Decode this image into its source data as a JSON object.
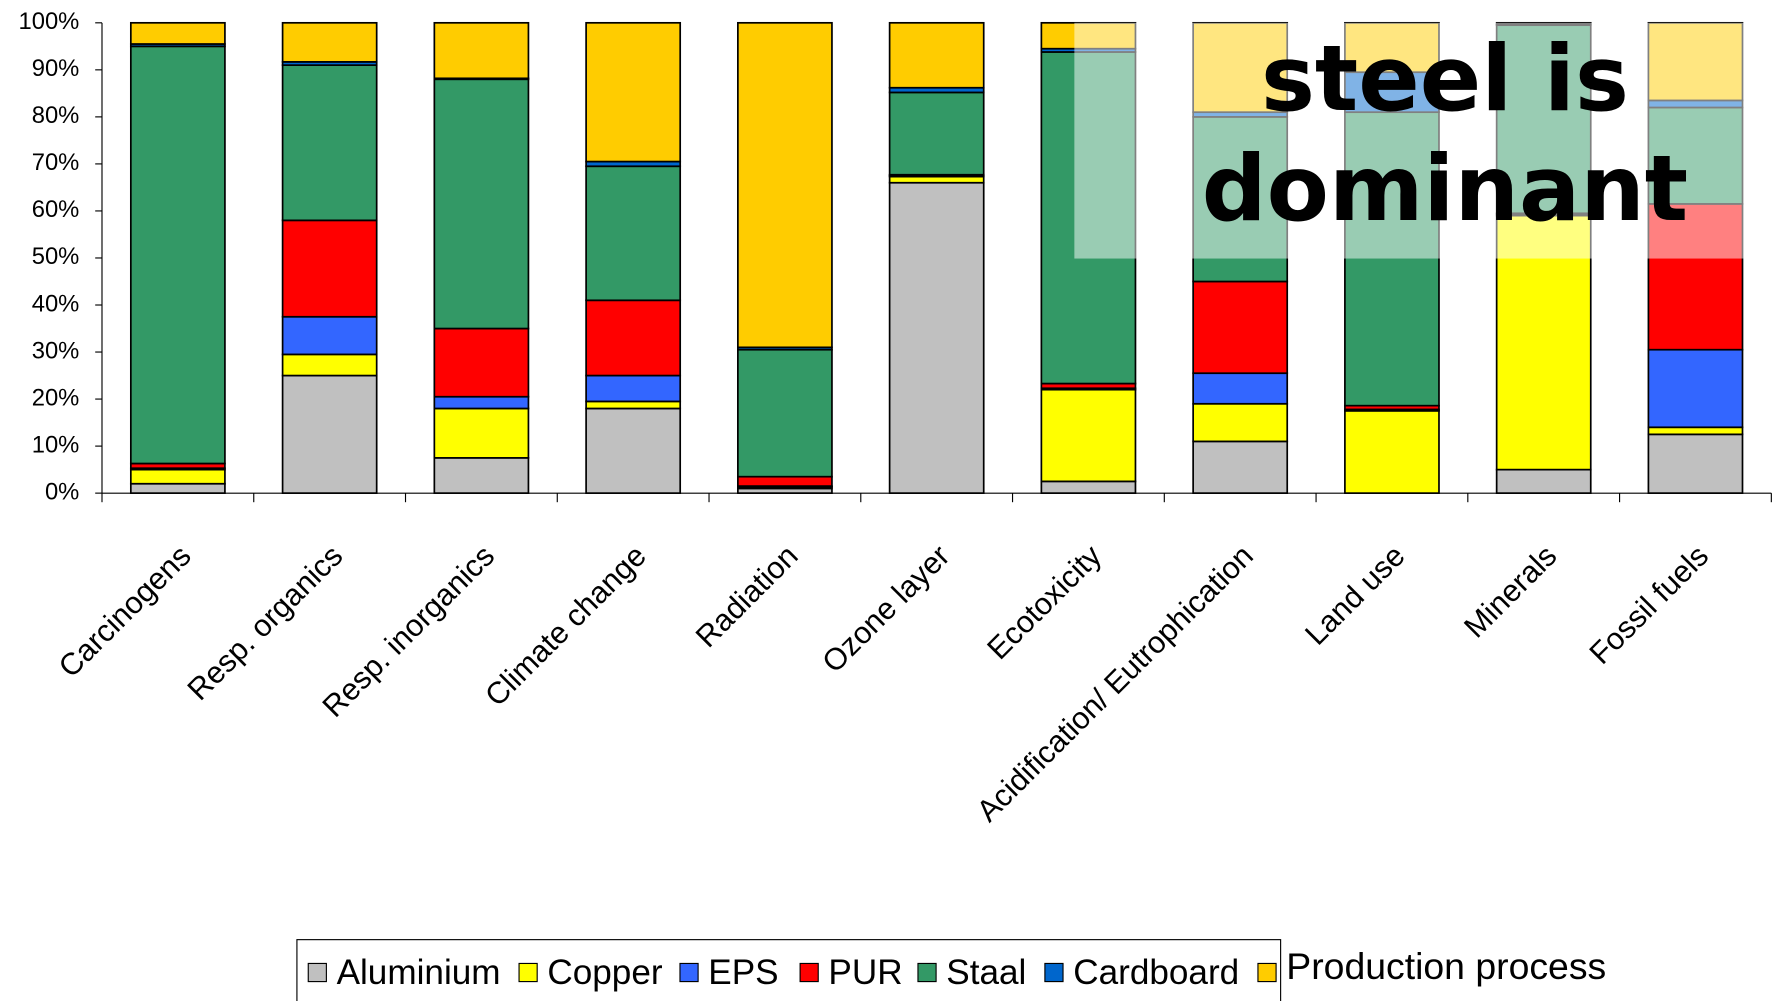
{
  "chart_data": {
    "type": "stacked_bar",
    "categories": [
      "Carcinogens",
      "Resp. organics",
      "Resp. inorganics",
      "Climate change",
      "Radiation",
      "Ozone layer",
      "Ecotoxicity",
      "Acidification/ Eutrophication",
      "Land use",
      "Minerals",
      "Fossil fuels"
    ],
    "series": [
      {
        "name": "Aluminium",
        "color": "#c0c0c0",
        "values": [
          2,
          25,
          7.5,
          18,
          1,
          66,
          2.5,
          11,
          0,
          5,
          12.5
        ]
      },
      {
        "name": "Copper",
        "color": "#ffff00",
        "values": [
          3,
          4.5,
          10.5,
          1.5,
          0.3,
          1.3,
          19.5,
          8,
          17.5,
          54,
          1.5
        ]
      },
      {
        "name": "EPS",
        "color": "#3366ff",
        "values": [
          0.3,
          8,
          2.5,
          5.5,
          0.2,
          0.2,
          0.3,
          6.5,
          0.3,
          0.3,
          16.5
        ]
      },
      {
        "name": "PUR",
        "color": "#ff0000",
        "values": [
          1,
          20.5,
          14.5,
          16,
          2,
          0.2,
          1,
          19.5,
          0.8,
          0.2,
          31
        ]
      },
      {
        "name": "Staal",
        "color": "#339966",
        "values": [
          88.7,
          33,
          53,
          28.5,
          27,
          17.5,
          70.5,
          35,
          62.4,
          40,
          20.5
        ]
      },
      {
        "name": "Cardboard",
        "color": "#0066cc",
        "values": [
          0.5,
          0.7,
          0.2,
          1,
          0.5,
          1,
          0.7,
          1,
          8.5,
          0.2,
          1.5
        ]
      },
      {
        "name": "Production process",
        "color": "#ffcc00",
        "values": [
          4.5,
          8.3,
          11.8,
          29.5,
          69,
          13.8,
          5.5,
          19,
          10.5,
          0.3,
          16.5
        ]
      }
    ],
    "ylim": [
      0,
      100
    ],
    "yticks": [
      {
        "value": 0,
        "label": "0%"
      },
      {
        "value": 10,
        "label": "10%"
      },
      {
        "value": 20,
        "label": "20%"
      },
      {
        "value": 30,
        "label": "30%"
      },
      {
        "value": 40,
        "label": "40%"
      },
      {
        "value": 50,
        "label": "50%"
      },
      {
        "value": 60,
        "label": "60%"
      },
      {
        "value": 70,
        "label": "70%"
      },
      {
        "value": 80,
        "label": "80%"
      },
      {
        "value": 90,
        "label": "90%"
      },
      {
        "value": 100,
        "label": "100%"
      }
    ],
    "grid": false,
    "legend": "bottom",
    "annotation": [
      "steel is",
      "dominant"
    ]
  }
}
